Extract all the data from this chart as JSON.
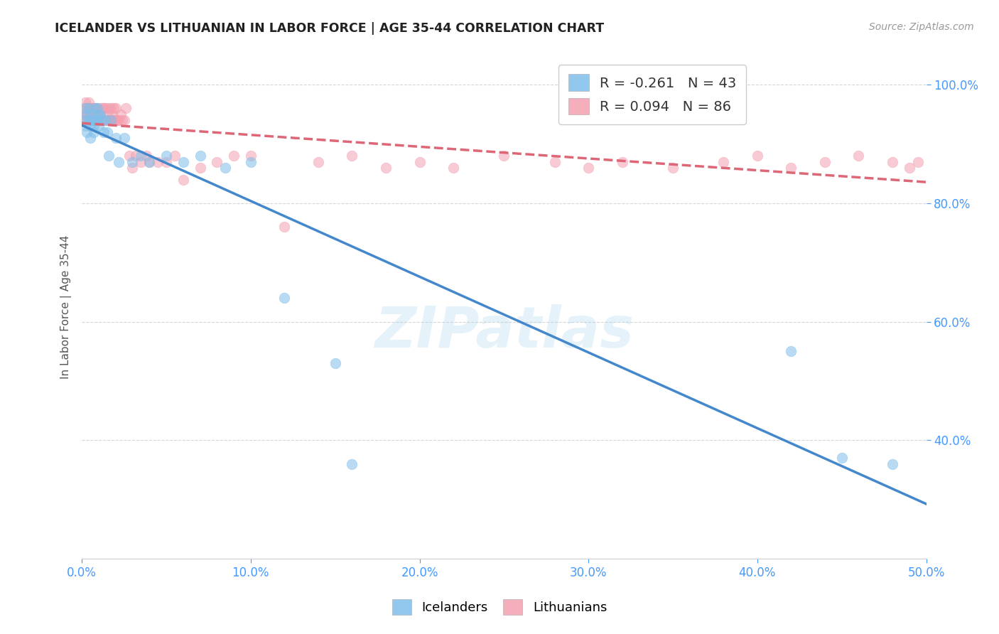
{
  "title": "ICELANDER VS LITHUANIAN IN LABOR FORCE | AGE 35-44 CORRELATION CHART",
  "source": "Source: ZipAtlas.com",
  "ylabel": "In Labor Force | Age 35-44",
  "xlim": [
    0.0,
    0.5
  ],
  "ylim": [
    0.2,
    1.05
  ],
  "xtick_labels": [
    "0.0%",
    "10.0%",
    "20.0%",
    "30.0%",
    "40.0%",
    "50.0%"
  ],
  "xtick_values": [
    0.0,
    0.1,
    0.2,
    0.3,
    0.4,
    0.5
  ],
  "ytick_labels": [
    "40.0%",
    "60.0%",
    "80.0%",
    "100.0%"
  ],
  "ytick_values": [
    0.4,
    0.6,
    0.8,
    1.0
  ],
  "legend_r_blue": "R = -0.261",
  "legend_n_blue": "N = 43",
  "legend_r_pink": "R = 0.094",
  "legend_n_pink": "N = 86",
  "blue_color": "#7fbfea",
  "pink_color": "#f4a0b0",
  "trend_blue_color": "#4488cc",
  "trend_pink_color": "#dd6677",
  "watermark": "ZIPatlas",
  "icelanders_x": [
    0.001,
    0.002,
    0.002,
    0.003,
    0.003,
    0.004,
    0.004,
    0.005,
    0.005,
    0.006,
    0.006,
    0.007,
    0.007,
    0.008,
    0.008,
    0.009,
    0.009,
    0.01,
    0.01,
    0.011,
    0.012,
    0.013,
    0.014,
    0.015,
    0.016,
    0.017,
    0.02,
    0.022,
    0.025,
    0.03,
    0.035,
    0.04,
    0.05,
    0.06,
    0.07,
    0.085,
    0.1,
    0.12,
    0.15,
    0.16,
    0.42,
    0.45,
    0.48
  ],
  "icelanders_y": [
    0.94,
    0.96,
    0.93,
    0.95,
    0.92,
    0.94,
    0.96,
    0.93,
    0.91,
    0.95,
    0.94,
    0.93,
    0.92,
    0.96,
    0.94,
    0.94,
    0.96,
    0.93,
    0.95,
    0.95,
    0.94,
    0.92,
    0.94,
    0.92,
    0.88,
    0.94,
    0.91,
    0.87,
    0.91,
    0.87,
    0.88,
    0.87,
    0.88,
    0.87,
    0.88,
    0.86,
    0.87,
    0.64,
    0.53,
    0.36,
    0.55,
    0.37,
    0.36
  ],
  "lithuanians_x": [
    0.001,
    0.001,
    0.002,
    0.002,
    0.003,
    0.003,
    0.003,
    0.004,
    0.004,
    0.004,
    0.005,
    0.005,
    0.005,
    0.006,
    0.006,
    0.006,
    0.007,
    0.007,
    0.007,
    0.008,
    0.008,
    0.008,
    0.009,
    0.009,
    0.01,
    0.01,
    0.01,
    0.011,
    0.011,
    0.012,
    0.012,
    0.013,
    0.013,
    0.014,
    0.014,
    0.015,
    0.015,
    0.016,
    0.016,
    0.017,
    0.017,
    0.018,
    0.018,
    0.019,
    0.019,
    0.02,
    0.02,
    0.021,
    0.022,
    0.023,
    0.024,
    0.025,
    0.026,
    0.028,
    0.03,
    0.032,
    0.035,
    0.038,
    0.04,
    0.045,
    0.05,
    0.055,
    0.06,
    0.07,
    0.08,
    0.09,
    0.1,
    0.12,
    0.14,
    0.16,
    0.18,
    0.2,
    0.22,
    0.25,
    0.28,
    0.3,
    0.32,
    0.35,
    0.38,
    0.4,
    0.42,
    0.44,
    0.46,
    0.48,
    0.49,
    0.495
  ],
  "lithuanians_y": [
    0.94,
    0.96,
    0.95,
    0.97,
    0.96,
    0.94,
    0.95,
    0.96,
    0.95,
    0.97,
    0.96,
    0.95,
    0.94,
    0.96,
    0.95,
    0.96,
    0.95,
    0.94,
    0.96,
    0.95,
    0.94,
    0.96,
    0.95,
    0.94,
    0.96,
    0.95,
    0.94,
    0.95,
    0.94,
    0.94,
    0.96,
    0.94,
    0.96,
    0.94,
    0.96,
    0.95,
    0.94,
    0.94,
    0.96,
    0.94,
    0.96,
    0.95,
    0.94,
    0.96,
    0.94,
    0.94,
    0.96,
    0.94,
    0.94,
    0.95,
    0.94,
    0.94,
    0.96,
    0.88,
    0.86,
    0.88,
    0.87,
    0.88,
    0.87,
    0.87,
    0.87,
    0.88,
    0.84,
    0.86,
    0.87,
    0.88,
    0.88,
    0.76,
    0.87,
    0.88,
    0.86,
    0.87,
    0.86,
    0.88,
    0.87,
    0.86,
    0.87,
    0.86,
    0.87,
    0.88,
    0.86,
    0.87,
    0.88,
    0.87,
    0.86,
    0.87
  ]
}
